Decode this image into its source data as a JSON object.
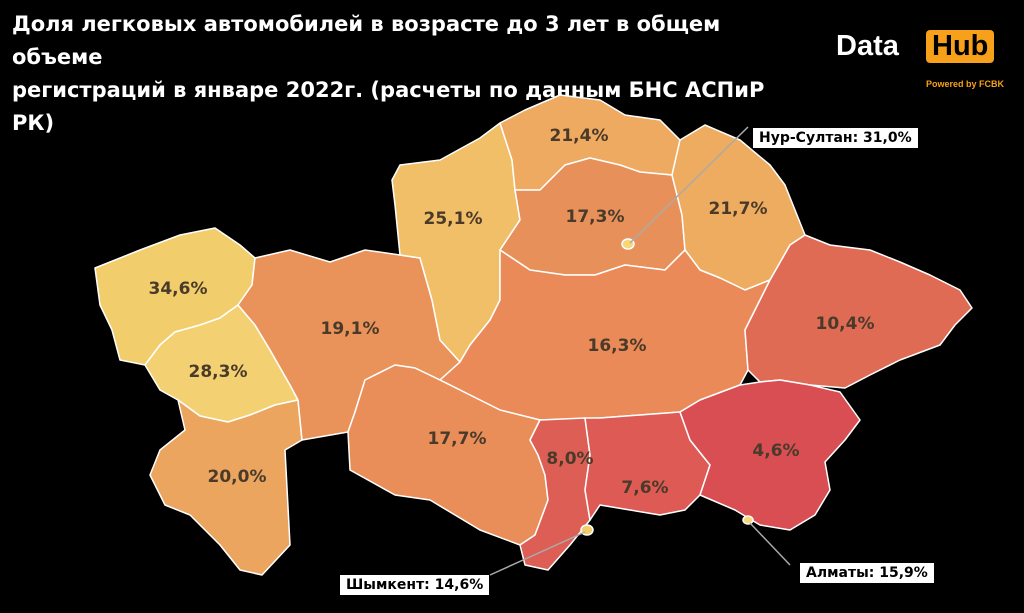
{
  "title": {
    "line1": "Доля легковых автомобилей в возрасте до 3 лет в общем объеме",
    "line2": "регистраций в январе 2022г. (расчеты по данным БНС АСПиР РК)"
  },
  "brand": {
    "data": "Data",
    "hub": "Hub",
    "powered": "Powered by FCBK"
  },
  "regions": [
    {
      "id": "west-kazakhstan",
      "value": "34,6%",
      "color": "#f2cd6c"
    },
    {
      "id": "atyrau",
      "value": "28,3%",
      "color": "#f3d173"
    },
    {
      "id": "mangystau",
      "value": "20,0%",
      "color": "#eca55f"
    },
    {
      "id": "aktobe",
      "value": "19,1%",
      "color": "#e9935a"
    },
    {
      "id": "kostanay",
      "value": "25,1%",
      "color": "#f1bf68"
    },
    {
      "id": "north-kazakhstan",
      "value": "21,4%",
      "color": "#eeaa60"
    },
    {
      "id": "akmola",
      "value": "17,3%",
      "color": "#e8905a"
    },
    {
      "id": "pavlodar",
      "value": "21,7%",
      "color": "#eeac60"
    },
    {
      "id": "karaganda",
      "value": "16,3%",
      "color": "#e98a58"
    },
    {
      "id": "east-kazakhstan",
      "value": "10,4%",
      "color": "#e06b55"
    },
    {
      "id": "kyzylorda",
      "value": "17,7%",
      "color": "#e98e59"
    },
    {
      "id": "turkestan",
      "value": "8,0%",
      "color": "#dd5e55"
    },
    {
      "id": "zhambyl",
      "value": "7,6%",
      "color": "#dd5a55"
    },
    {
      "id": "almaty-region",
      "value": "4,6%",
      "color": "#d84e52"
    }
  ],
  "cities": [
    {
      "id": "nur-sultan",
      "label": "Нур-Султан: 31,0%"
    },
    {
      "id": "shymkent",
      "label": "Шымкент: 14,6%"
    },
    {
      "id": "almaty",
      "label": "Алматы: 15,9%"
    }
  ]
}
